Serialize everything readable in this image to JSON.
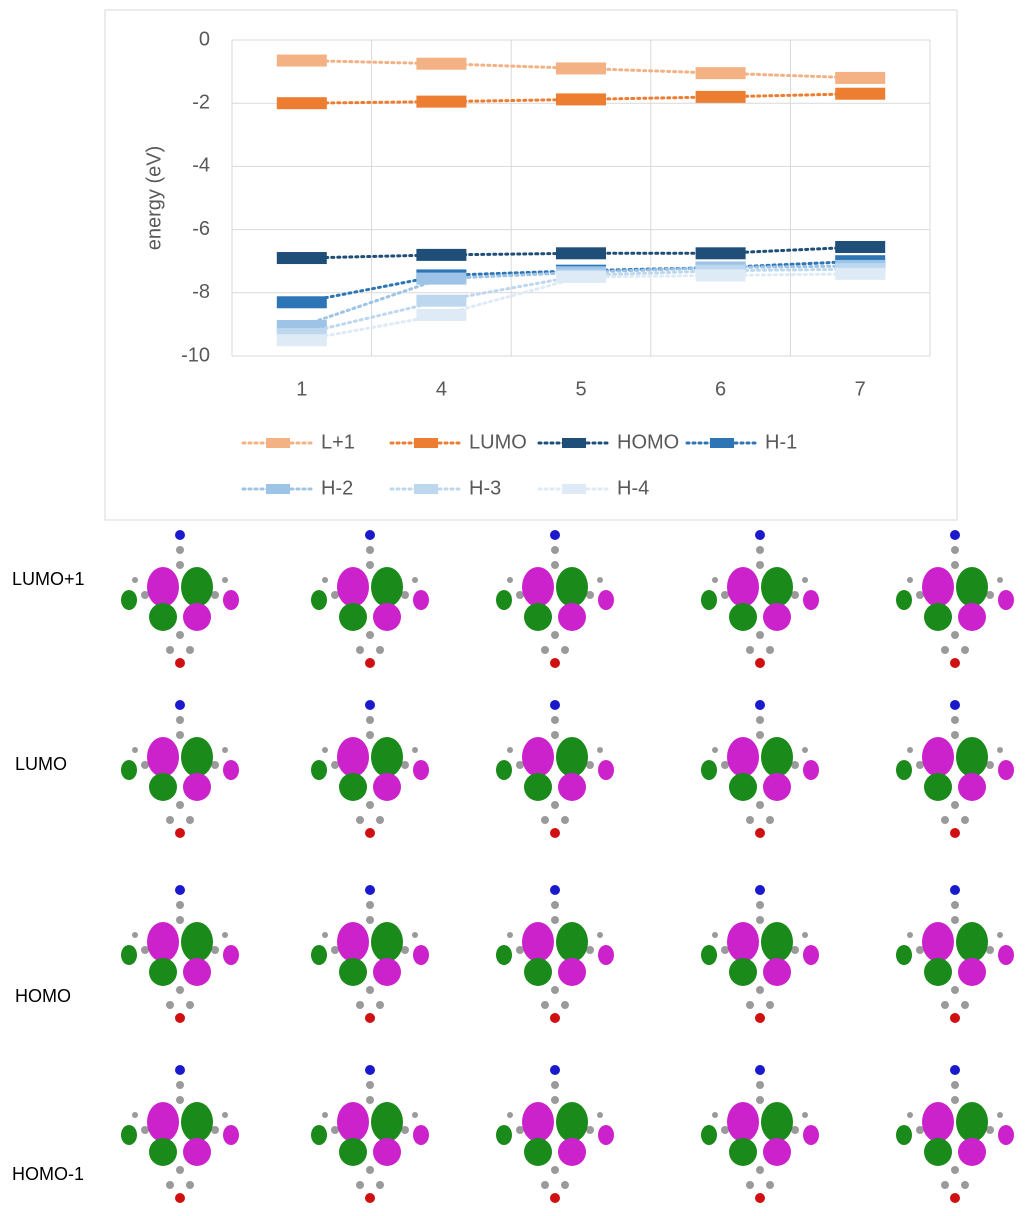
{
  "chart_data": {
    "type": "line",
    "marker": "bar",
    "ylabel": "energy (eV)",
    "categories": [
      "1",
      "4",
      "5",
      "6",
      "7"
    ],
    "ylim": [
      -10,
      0
    ],
    "yticks": [
      0,
      -2,
      -4,
      -6,
      -8,
      -10
    ],
    "grid": true,
    "legend_position": "bottom",
    "series": [
      {
        "name": "L+1",
        "color": "#f4b183",
        "values": [
          -0.65,
          -0.75,
          -0.9,
          -1.05,
          -1.2
        ]
      },
      {
        "name": "LUMO",
        "color": "#ed7d31",
        "values": [
          -2.0,
          -1.95,
          -1.88,
          -1.8,
          -1.7
        ]
      },
      {
        "name": "HOMO",
        "color": "#1f4e79",
        "values": [
          -6.9,
          -6.8,
          -6.75,
          -6.75,
          -6.55
        ]
      },
      {
        "name": "H-1",
        "color": "#2e75b6",
        "values": [
          -8.3,
          -7.45,
          -7.3,
          -7.2,
          -7.0
        ]
      },
      {
        "name": "H-2",
        "color": "#9dc3e6",
        "values": [
          -9.05,
          -7.55,
          -7.35,
          -7.2,
          -7.15
        ]
      },
      {
        "name": "H-3",
        "color": "#bdd7ee",
        "values": [
          -9.3,
          -8.25,
          -7.45,
          -7.3,
          -7.25
        ]
      },
      {
        "name": "H-4",
        "color": "#deebf7",
        "values": [
          -9.5,
          -8.7,
          -7.5,
          -7.45,
          -7.4
        ]
      }
    ]
  },
  "orbital_rows": [
    "LUMO+1",
    "LUMO",
    "HOMO",
    "HOMO-1"
  ]
}
